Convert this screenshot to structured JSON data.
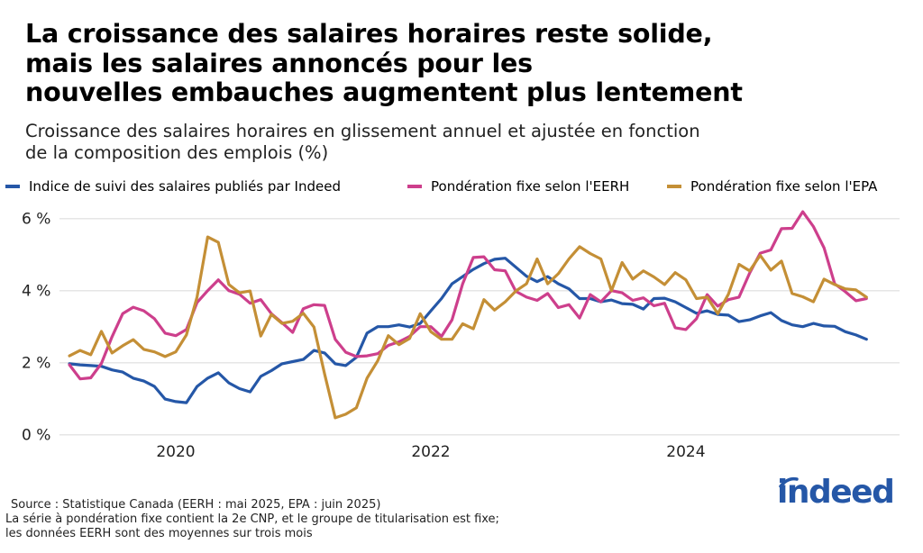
{
  "title_lines": [
    "La croissance des salaires horaires reste solide,",
    "mais les salaires annoncés pour les",
    "nouvelles embauches augmentent plus lentement"
  ],
  "subtitle_lines": [
    "Croissance des salaires horaires en glissement annuel et ajustée en fonction",
    "de la composition des emplois (%)"
  ],
  "footer": {
    "source": "Source : Statistique Canada (EERH : mai 2025, EPA : juin 2025)",
    "note_lines": [
      "La série à pondération fixe contient la 2e CNP, et le groupe de titularisation est fixe;",
      "les données EERH sont des moyennes sur trois mois"
    ]
  },
  "logo": {
    "text": "indeed",
    "color": "#2557a7"
  },
  "chart_data": {
    "type": "line",
    "title": "",
    "xlabel": "",
    "ylabel": "",
    "ylim": [
      0,
      6
    ],
    "yticks": [
      0,
      2,
      4,
      6
    ],
    "ytick_labels": [
      "0 %",
      "2 %",
      "4 %",
      "6 %"
    ],
    "xticks": [
      "2020-01",
      "2022-01",
      "2024-01"
    ],
    "xtick_labels": [
      "2020",
      "2022",
      "2024"
    ],
    "grid": "horizontal",
    "legend": "top",
    "x": [
      "2019-03",
      "2019-04",
      "2019-05",
      "2019-06",
      "2019-07",
      "2019-08",
      "2019-09",
      "2019-10",
      "2019-11",
      "2019-12",
      "2020-01",
      "2020-02",
      "2020-03",
      "2020-04",
      "2020-05",
      "2020-06",
      "2020-07",
      "2020-08",
      "2020-09",
      "2020-10",
      "2020-11",
      "2020-12",
      "2021-01",
      "2021-02",
      "2021-03",
      "2021-04",
      "2021-05",
      "2021-06",
      "2021-07",
      "2021-08",
      "2021-09",
      "2021-10",
      "2021-11",
      "2021-12",
      "2022-01",
      "2022-02",
      "2022-03",
      "2022-04",
      "2022-05",
      "2022-06",
      "2022-07",
      "2022-08",
      "2022-09",
      "2022-10",
      "2022-11",
      "2022-12",
      "2023-01",
      "2023-02",
      "2023-03",
      "2023-04",
      "2023-05",
      "2023-06",
      "2023-07",
      "2023-08",
      "2023-09",
      "2023-10",
      "2023-11",
      "2023-12",
      "2024-01",
      "2024-02",
      "2024-03",
      "2024-04",
      "2024-05",
      "2024-06",
      "2024-07",
      "2024-08",
      "2024-09",
      "2024-10",
      "2024-11",
      "2024-12",
      "2025-01",
      "2025-02",
      "2025-03",
      "2025-04",
      "2025-05",
      "2025-06"
    ],
    "series": [
      {
        "name": "Indice de suivi des salaires publiés par Indeed",
        "color": "#2557a7",
        "values": [
          1.97,
          1.94,
          1.92,
          1.9,
          1.8,
          1.74,
          1.57,
          1.49,
          1.34,
          0.99,
          0.92,
          0.89,
          1.34,
          1.57,
          1.72,
          1.44,
          1.28,
          1.19,
          1.62,
          1.78,
          1.97,
          2.03,
          2.09,
          2.34,
          2.27,
          1.97,
          1.92,
          2.15,
          2.82,
          3.0,
          3.0,
          3.05,
          2.99,
          3.09,
          3.44,
          3.78,
          4.19,
          4.39,
          4.59,
          4.75,
          4.87,
          4.9,
          4.65,
          4.4,
          4.25,
          4.39,
          4.19,
          4.05,
          3.78,
          3.78,
          3.69,
          3.74,
          3.64,
          3.62,
          3.49,
          3.78,
          3.79,
          3.69,
          3.53,
          3.37,
          3.44,
          3.34,
          3.32,
          3.14,
          3.19,
          3.3,
          3.39,
          3.17,
          3.05,
          3.0,
          3.09,
          3.02,
          3.01,
          2.86,
          2.77,
          2.65
        ]
      },
      {
        "name": "Pondération fixe selon l'EERH",
        "color": "#cd3f8c",
        "values": [
          1.94,
          1.55,
          1.58,
          1.98,
          2.72,
          3.36,
          3.54,
          3.44,
          3.22,
          2.82,
          2.75,
          2.92,
          3.67,
          4.0,
          4.3,
          4.0,
          3.9,
          3.65,
          3.75,
          3.36,
          3.11,
          2.84,
          3.5,
          3.61,
          3.59,
          2.65,
          2.29,
          2.17,
          2.19,
          2.25,
          2.48,
          2.58,
          2.73,
          3.0,
          3.0,
          2.73,
          3.19,
          4.19,
          4.92,
          4.94,
          4.58,
          4.55,
          3.98,
          3.82,
          3.73,
          3.92,
          3.53,
          3.61,
          3.24,
          3.89,
          3.69,
          4.0,
          3.94,
          3.73,
          3.8,
          3.58,
          3.65,
          2.97,
          2.92,
          3.22,
          3.89,
          3.57,
          3.75,
          3.82,
          4.49,
          5.04,
          5.13,
          5.72,
          5.73,
          6.19,
          5.78,
          5.19,
          4.19,
          3.97,
          3.72,
          3.78
        ]
      },
      {
        "name": "Pondération fixe selon l'EPA",
        "color": "#c48f36",
        "values": [
          2.19,
          2.34,
          2.22,
          2.87,
          2.27,
          2.47,
          2.64,
          2.37,
          2.3,
          2.17,
          2.3,
          2.77,
          3.82,
          5.49,
          5.34,
          4.17,
          3.94,
          3.99,
          2.74,
          3.34,
          3.09,
          3.15,
          3.37,
          2.99,
          1.69,
          0.47,
          0.57,
          0.75,
          1.57,
          2.05,
          2.75,
          2.5,
          2.67,
          3.36,
          2.86,
          2.65,
          2.65,
          3.08,
          2.94,
          3.75,
          3.46,
          3.69,
          3.99,
          4.19,
          4.88,
          4.19,
          4.47,
          4.88,
          5.22,
          5.03,
          4.88,
          4.0,
          4.78,
          4.32,
          4.55,
          4.38,
          4.17,
          4.5,
          4.3,
          3.78,
          3.82,
          3.36,
          3.9,
          4.73,
          4.55,
          4.98,
          4.57,
          4.82,
          3.92,
          3.83,
          3.69,
          4.32,
          4.17,
          4.05,
          4.02,
          3.82
        ]
      }
    ]
  }
}
